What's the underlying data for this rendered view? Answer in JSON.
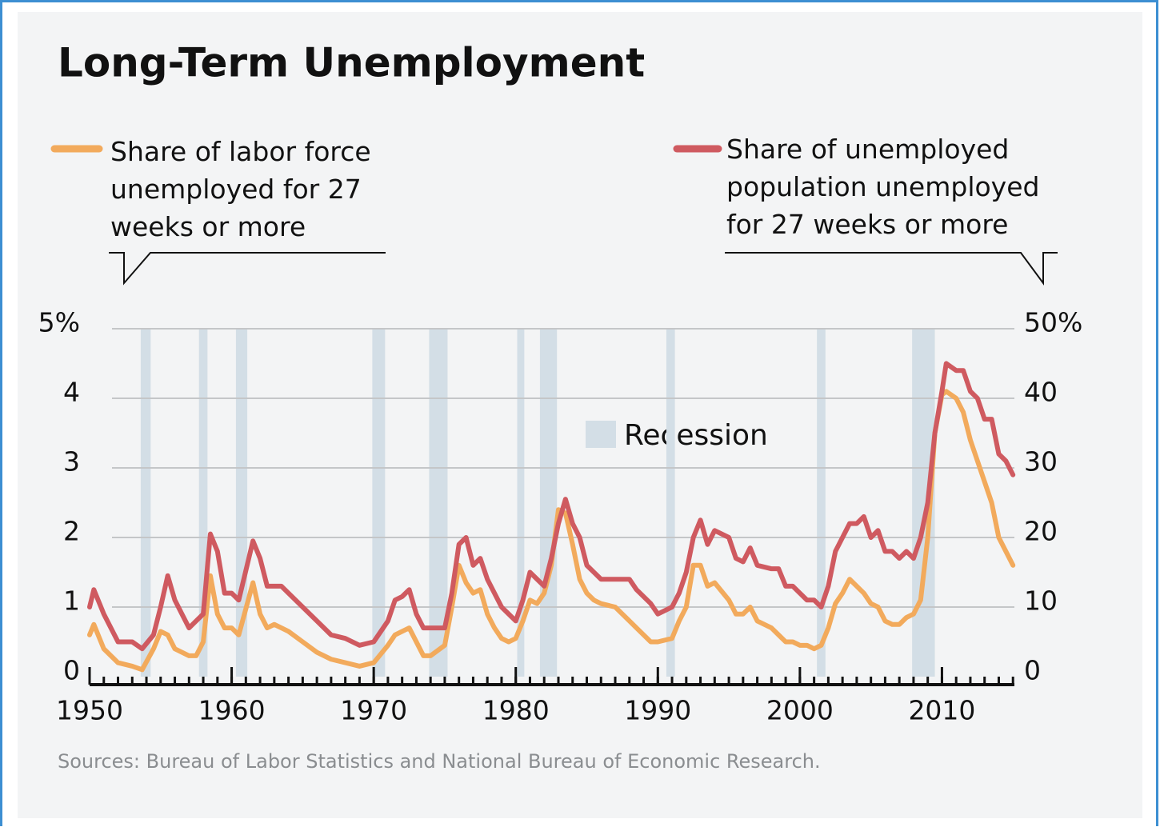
{
  "chart_data": {
    "type": "line",
    "title": "Long-Term Unemployment",
    "source": "Sources: Bureau of Labor Statistics and National Bureau of Economic Research.",
    "recession_label": "Recession",
    "recession_color": "#d3dee6",
    "recessions": [
      [
        1953.6,
        1954.3
      ],
      [
        1957.7,
        1958.3
      ],
      [
        1960.3,
        1961.1
      ],
      [
        1969.9,
        1970.8
      ],
      [
        1973.9,
        1975.2
      ],
      [
        1980.1,
        1980.6
      ],
      [
        1981.7,
        1982.9
      ],
      [
        1990.6,
        1991.2
      ],
      [
        2001.2,
        2001.8
      ],
      [
        2007.9,
        2009.5
      ]
    ],
    "x": [
      1950,
      1950.3,
      1951,
      1952,
      1953,
      1953.7,
      1954.5,
      1955,
      1955.5,
      1956,
      1956.5,
      1957,
      1957.5,
      1958,
      1958.5,
      1959,
      1959.5,
      1960,
      1960.5,
      1961.5,
      1962,
      1962.5,
      1963,
      1963.5,
      1964,
      1965,
      1966,
      1967,
      1968,
      1969,
      1970,
      1971,
      1971.5,
      1972,
      1972.5,
      1973,
      1973.5,
      1974,
      1975,
      1975.5,
      1976,
      1976.5,
      1977,
      1977.5,
      1978,
      1978.5,
      1979,
      1979.5,
      1980,
      1980.5,
      1981,
      1981.5,
      1982,
      1982.5,
      1983,
      1983.5,
      1984,
      1984.5,
      1985,
      1985.5,
      1986,
      1987,
      1988,
      1988.5,
      1989.5,
      1990,
      1991,
      1991.5,
      1992,
      1992.5,
      1993,
      1993.5,
      1994,
      1995,
      1995.5,
      1996,
      1996.5,
      1997,
      1998,
      1998.5,
      1999,
      1999.5,
      2000,
      2000.5,
      2001,
      2001.5,
      2002,
      2002.5,
      2003,
      2003.5,
      2004,
      2004.5,
      2005,
      2005.5,
      2006,
      2006.5,
      2007,
      2007.5,
      2008,
      2008.5,
      2009,
      2009.5,
      2010,
      2010.3,
      2011,
      2011.5,
      2012,
      2012.5,
      2013,
      2013.5,
      2014,
      2014.5,
      2015
    ],
    "series": [
      {
        "name": "Share of labor force unemployed for 27 weeks or more",
        "color": "#f2aa5c",
        "axis": "y",
        "values": [
          0.6,
          0.75,
          0.4,
          0.2,
          0.15,
          0.1,
          0.4,
          0.65,
          0.6,
          0.4,
          0.35,
          0.3,
          0.3,
          0.5,
          1.45,
          0.9,
          0.7,
          0.7,
          0.6,
          1.35,
          0.9,
          0.7,
          0.75,
          0.7,
          0.65,
          0.5,
          0.35,
          0.25,
          0.2,
          0.15,
          0.2,
          0.45,
          0.6,
          0.65,
          0.7,
          0.5,
          0.3,
          0.3,
          0.45,
          1.0,
          1.6,
          1.35,
          1.2,
          1.25,
          0.9,
          0.7,
          0.55,
          0.5,
          0.55,
          0.8,
          1.1,
          1.05,
          1.2,
          1.6,
          2.4,
          2.35,
          1.9,
          1.4,
          1.2,
          1.1,
          1.05,
          1.0,
          0.8,
          0.7,
          0.5,
          0.5,
          0.55,
          0.8,
          1.0,
          1.6,
          1.6,
          1.3,
          1.35,
          1.1,
          0.9,
          0.9,
          1.0,
          0.8,
          0.7,
          0.6,
          0.5,
          0.5,
          0.45,
          0.45,
          0.4,
          0.45,
          0.7,
          1.05,
          1.2,
          1.4,
          1.3,
          1.2,
          1.05,
          1.0,
          0.8,
          0.75,
          0.75,
          0.85,
          0.9,
          1.1,
          2.0,
          3.5,
          4.05,
          4.1,
          4.0,
          3.8,
          3.4,
          3.1,
          2.8,
          2.5,
          2.0,
          1.8,
          1.6
        ]
      },
      {
        "name": "Share of unemployed population unemployed for 27 weeks or more",
        "color": "#cf5a60",
        "axis": "y2",
        "values": [
          10,
          12.5,
          9,
          5,
          5,
          4,
          6,
          10,
          14.5,
          11,
          9,
          7,
          8,
          9,
          20.5,
          18,
          12,
          12,
          11,
          19.5,
          17,
          13,
          13,
          13,
          12,
          10,
          8,
          6,
          5.5,
          4.5,
          5,
          8,
          11,
          11.5,
          12.5,
          9,
          7,
          7,
          7,
          12,
          19,
          20,
          16,
          17,
          14,
          12,
          10,
          9,
          8,
          11,
          15,
          14,
          13,
          17,
          22,
          25.5,
          22,
          20,
          16,
          15,
          14,
          14,
          14,
          12.5,
          10.5,
          9,
          10,
          12,
          15,
          20,
          22.5,
          19,
          21,
          20,
          17,
          16.5,
          18.5,
          16,
          15.5,
          15.5,
          13,
          13,
          12,
          11,
          11,
          10,
          13,
          18,
          20,
          22,
          22,
          23,
          20,
          21,
          18,
          18,
          17,
          18,
          17,
          20,
          25,
          35,
          41,
          45,
          44,
          44,
          41,
          40,
          37,
          37,
          32,
          31,
          29
        ]
      }
    ],
    "xlim": [
      1950,
      2015.1
    ],
    "xticks": [
      1950,
      1960,
      1970,
      1980,
      1990,
      2000,
      2010
    ],
    "xminorticks": [
      1950,
      1951,
      1952,
      1953,
      1954,
      1955,
      1956,
      1957,
      1958,
      1959,
      1960,
      1961,
      1962,
      1963,
      1964,
      1965,
      1966,
      1967,
      1968,
      1969,
      1970,
      1971,
      1972,
      1973,
      1974,
      1975,
      1976,
      1977,
      1978,
      1979,
      1980,
      1981,
      1982,
      1983,
      1984,
      1985,
      1986,
      1987,
      1988,
      1989,
      1990,
      1991,
      1992,
      1993,
      1994,
      1995,
      1996,
      1997,
      1998,
      1999,
      2000,
      2001,
      2002,
      2003,
      2004,
      2005,
      2006,
      2007,
      2008,
      2009,
      2010,
      2011,
      2012,
      2013,
      2014,
      2015
    ],
    "ylim": [
      0,
      5
    ],
    "yticks": [
      0,
      1,
      2,
      3,
      4,
      {
        "value": 5,
        "label": "5%"
      }
    ],
    "y2lim": [
      0,
      50
    ],
    "y2ticks": [
      0,
      10,
      20,
      30,
      40,
      {
        "value": 50,
        "label": "50%"
      }
    ],
    "grid": true
  }
}
